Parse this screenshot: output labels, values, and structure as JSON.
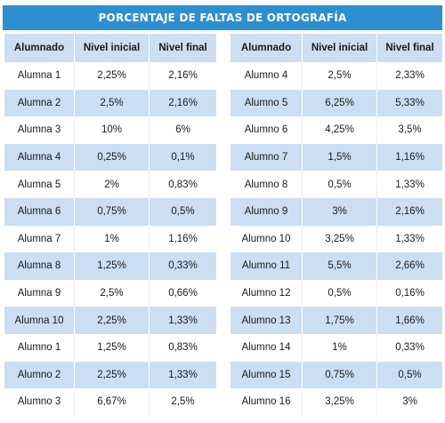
{
  "title": "PORCENTAJE DE FALTAS DE ORTOGRAFÍA",
  "headers": [
    "Alumnado",
    "Nivel inicial",
    "Nivel final"
  ],
  "left_rows": [
    [
      "Alumna 1",
      "2,25%",
      "2,16%"
    ],
    [
      "Alumna 2",
      "2,5%",
      "2,16%"
    ],
    [
      "Alumna 3",
      "10%",
      "6%"
    ],
    [
      "Alumna 4",
      "0,25%",
      "0,1%"
    ],
    [
      "Alumna 5",
      "2%",
      "0,83%"
    ],
    [
      "Alumna 6",
      "0,75%",
      "0,5%"
    ],
    [
      "Alumna 7",
      "1%",
      "1,16%"
    ],
    [
      "Alumna 8",
      "1,25%",
      "0,33%"
    ],
    [
      "Alumna 9",
      "2,5%",
      "0,66%"
    ],
    [
      "Alumna 10",
      "2,25%",
      "1,33%"
    ],
    [
      "Alumno 1",
      "1,25%",
      "0,83%"
    ],
    [
      "Alumno 2",
      "2,25%",
      "1,33%"
    ],
    [
      "Alumno 3",
      "6,67%",
      "2,5%"
    ]
  ],
  "right_rows": [
    [
      "Alumno 4",
      "2,5%",
      "2,33%"
    ],
    [
      "Alumno 5",
      "6,25%",
      "5,33%"
    ],
    [
      "Alumno 6",
      "4,25%",
      "3,5%"
    ],
    [
      "Alumno 7",
      "1,5%",
      "1,16%"
    ],
    [
      "Alumno 8",
      "0,5%",
      "1,33%"
    ],
    [
      "Alumno 9",
      "3%",
      "2,16%"
    ],
    [
      "Alumno 10",
      "3,25%",
      "1,33%"
    ],
    [
      "Alumno 11",
      "5,5%",
      "2,66%"
    ],
    [
      "Alumno 12",
      "0,5%",
      "0,16%"
    ],
    [
      "Alumno 13",
      "1,75%",
      "1,66%"
    ],
    [
      "Alumno 14",
      "1%",
      "0,33%"
    ],
    [
      "Alumno 15",
      "0,75%",
      "0,5%"
    ],
    [
      "Alumno 16",
      "3,25%",
      "3%"
    ]
  ],
  "colors": {
    "title_bg": "#2d8fd0",
    "stripe": "#ccdef1",
    "text": "#1a1a1a"
  }
}
